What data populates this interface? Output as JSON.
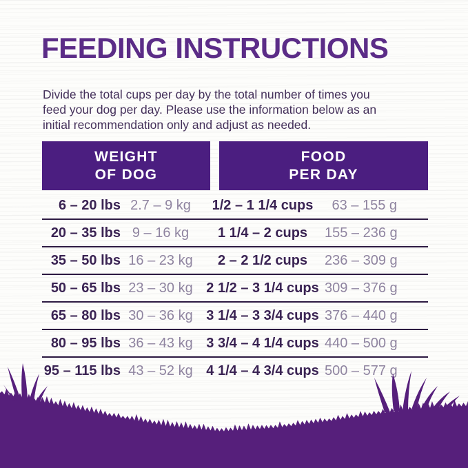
{
  "page": {
    "title": "FEEDING INSTRUCTIONS",
    "intro_lines": [
      "Divide the total cups per day by the total number of times you",
      "feed your dog per day. Please use the information below as an",
      "initial recommendation only and adjust as needed."
    ]
  },
  "table": {
    "headers": [
      {
        "line1": "WEIGHT",
        "line2": "OF DOG"
      },
      {
        "line1": "FOOD",
        "line2": "PER DAY"
      }
    ],
    "rows": [
      {
        "lbs": "6 – 20 lbs",
        "kg": "2.7 – 9 kg",
        "cups": "1/2 – 1 1/4 cups",
        "grams": "63 – 155 g"
      },
      {
        "lbs": "20 – 35 lbs",
        "kg": "9 – 16 kg",
        "cups": "1 1/4 – 2 cups",
        "grams": "155 – 236 g"
      },
      {
        "lbs": "35 – 50 lbs",
        "kg": "16 – 23 kg",
        "cups": "2 – 2 1/2 cups",
        "grams": "236 – 309 g"
      },
      {
        "lbs": "50 – 65 lbs",
        "kg": "23 – 30 kg",
        "cups": "2 1/2 – 3 1/4 cups",
        "grams": "309 – 376 g"
      },
      {
        "lbs": "65 – 80 lbs",
        "kg": "30 – 36 kg",
        "cups": "3 1/4 – 3 3/4 cups",
        "grams": "376 – 440 g"
      },
      {
        "lbs": "80 – 95 lbs",
        "kg": "36 – 43 kg",
        "cups": "3 3/4 – 4 1/4 cups",
        "grams": "440 – 500 g"
      },
      {
        "lbs": "95 – 115 lbs",
        "kg": "43 – 52 kg",
        "cups": "4 1/4 – 4 3/4 cups",
        "grams": "500 – 577 g"
      }
    ]
  },
  "colors": {
    "brand_purple": "#4b1e80",
    "grass_purple": "#561f7b",
    "title_purple": "#5b2c87",
    "dark_text": "#3a2353",
    "light_text": "#8f84a0",
    "divider": "#2d1a42"
  }
}
